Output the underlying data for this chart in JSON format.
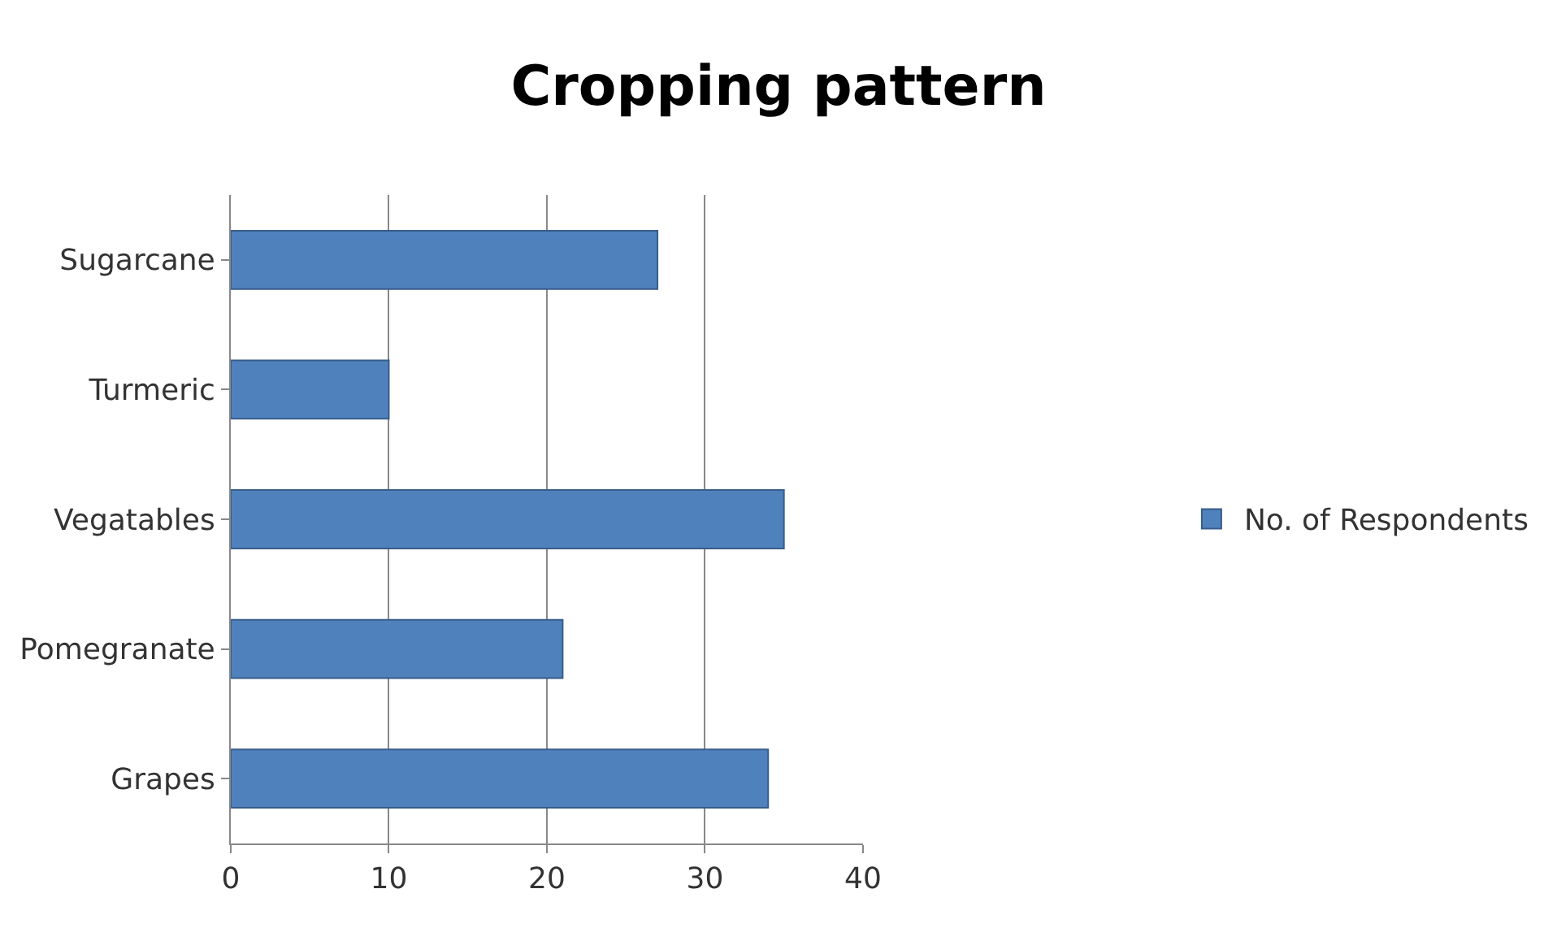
{
  "chart_data": {
    "type": "bar",
    "orientation": "horizontal",
    "title": "Cropping pattern",
    "categories": [
      "Sugarcane",
      "Turmeric",
      "Vegatables",
      "Pomegranate",
      "Grapes"
    ],
    "series": [
      {
        "name": "No. of Respondents",
        "color": "#4f81bd",
        "values": [
          27,
          10,
          35,
          21,
          34
        ]
      }
    ],
    "xlim": [
      0,
      40
    ],
    "xticks": [
      0,
      10,
      20,
      30,
      40
    ],
    "grid": "x",
    "legend": "right"
  }
}
